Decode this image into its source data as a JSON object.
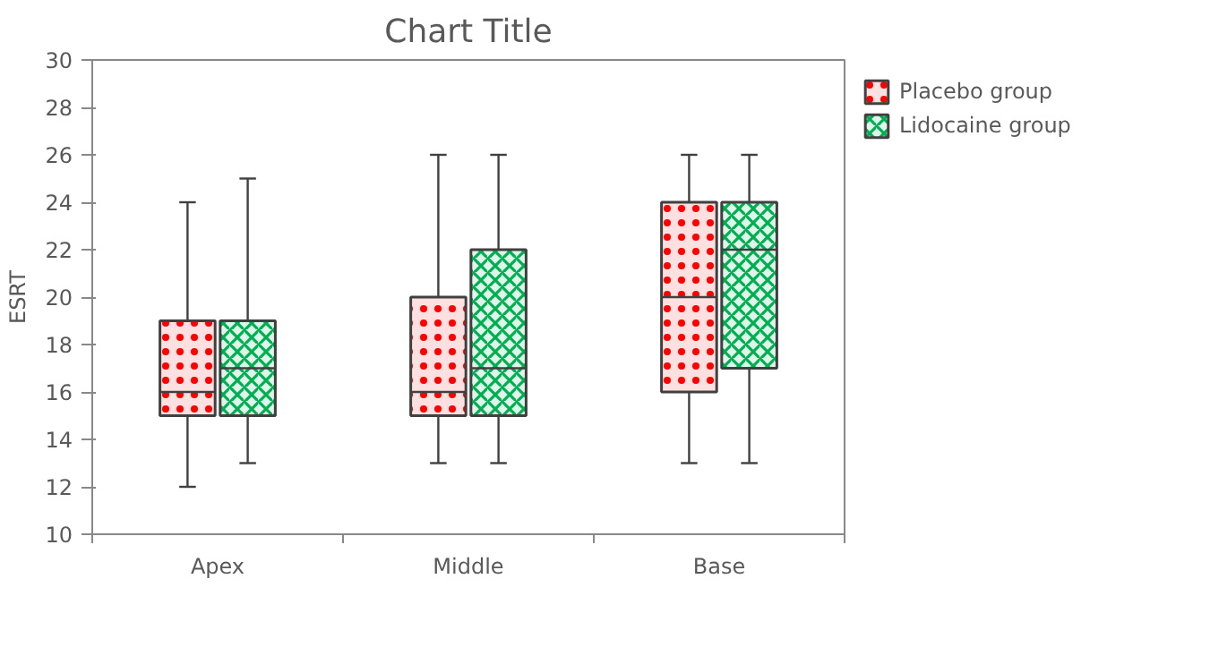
{
  "chart_data": {
    "type": "box",
    "title": "Chart Title",
    "ylabel": "ESRT",
    "categories": [
      "Apex",
      "Middle",
      "Base"
    ],
    "ylim": [
      10,
      30
    ],
    "yticks": [
      10,
      12,
      14,
      16,
      18,
      20,
      22,
      24,
      26,
      28,
      30
    ],
    "grid": false,
    "legend": "top right",
    "series": [
      {
        "name": "Placebo group",
        "color": "#ff0000",
        "boxes": [
          {
            "low": 12,
            "q1": 15,
            "median": 16,
            "q3": 19,
            "high": 24
          },
          {
            "low": 13,
            "q1": 15,
            "median": 16,
            "q3": 20,
            "high": 26
          },
          {
            "low": 13,
            "q1": 16,
            "median": 20,
            "q3": 24,
            "high": 26
          }
        ]
      },
      {
        "name": "Lidocaine group",
        "color": "#00b050",
        "boxes": [
          {
            "low": 13,
            "q1": 15,
            "median": 17,
            "q3": 19,
            "high": 25
          },
          {
            "low": 13,
            "q1": 15,
            "median": 17,
            "q3": 22,
            "high": 26
          },
          {
            "low": 13,
            "q1": 17,
            "median": 22,
            "q3": 24,
            "high": 26
          }
        ]
      }
    ]
  }
}
